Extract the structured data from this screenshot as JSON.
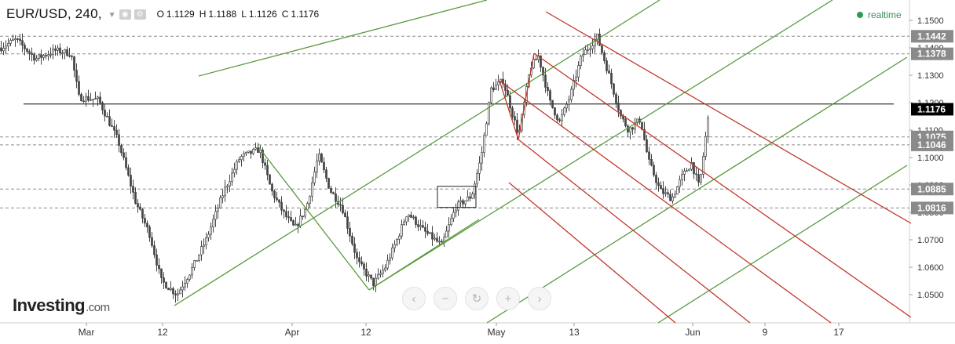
{
  "header": {
    "symbol": "EUR/USD, 240,",
    "open_label": "O",
    "open": "1.1129",
    "high_label": "H",
    "high": "1.1188",
    "low_label": "L",
    "low": "1.1126",
    "close_label": "C",
    "close": "1.1176"
  },
  "realtime_label": "realtime",
  "logo": {
    "main": "Investing",
    "suffix": ".com"
  },
  "nav_icons": [
    "scroll-left-icon",
    "zoom-out-icon",
    "reset-icon",
    "zoom-in-icon",
    "scroll-right-icon"
  ],
  "colors": {
    "candle": "#444444",
    "up_channel": "#5a9a3c",
    "down_channel": "#c0392b",
    "axis_badge": "#8a8a8a",
    "last_price_badge": "#000000",
    "realtime": "#2f9a54"
  },
  "chart_data": {
    "type": "candlestick",
    "symbol": "EUR/USD",
    "timeframe": "240",
    "ylim": [
      1.04,
      1.155
    ],
    "y_ticks": [
      1.05,
      1.06,
      1.07,
      1.08,
      1.09,
      1.1,
      1.11,
      1.12,
      1.13,
      1.14,
      1.15
    ],
    "y_tick_labels": [
      "1.0500",
      "1.0600",
      "1.0700",
      "1.0800",
      "1.0900",
      "1.1000",
      "1.1100",
      "1.1200",
      "1.1300",
      "1.1400",
      "1.1500"
    ],
    "x_ticks": [
      "Mar",
      "12",
      "Apr",
      "12",
      "May",
      "13",
      "Jun",
      "9",
      "17"
    ],
    "price_levels": [
      {
        "label": "1.1442",
        "value": 1.1442,
        "style": "dashed",
        "color": "#8a8a8a"
      },
      {
        "label": "1.1378",
        "value": 1.1378,
        "style": "dashed",
        "color": "#8a8a8a"
      },
      {
        "label": "1.1176",
        "value": 1.1176,
        "style": "last",
        "color": "#000000"
      },
      {
        "label": "1.1075",
        "value": 1.1075,
        "style": "dashed",
        "color": "#8a8a8a"
      },
      {
        "label": "1.1046",
        "value": 1.1046,
        "style": "dashed",
        "color": "#8a8a8a"
      },
      {
        "label": "1.0885",
        "value": 1.0885,
        "style": "dashed",
        "color": "#8a8a8a"
      },
      {
        "label": "1.0816",
        "value": 1.0816,
        "style": "dashed",
        "color": "#8a8a8a"
      }
    ],
    "horizontal_line": {
      "value": 1.1195,
      "color": "#000000"
    },
    "price_path": [
      [
        1.14,
        0
      ],
      [
        1.143,
        20
      ],
      [
        1.136,
        45
      ],
      [
        1.139,
        70
      ],
      [
        1.138,
        90
      ],
      [
        1.122,
        100
      ],
      [
        1.121,
        125
      ],
      [
        1.106,
        150
      ],
      [
        1.084,
        172
      ],
      [
        1.072,
        190
      ],
      [
        1.055,
        205
      ],
      [
        1.05,
        225
      ],
      [
        1.06,
        245
      ],
      [
        1.07,
        262
      ],
      [
        1.088,
        285
      ],
      [
        1.1,
        305
      ],
      [
        1.103,
        330
      ],
      [
        1.088,
        345
      ],
      [
        1.08,
        360
      ],
      [
        1.074,
        375
      ],
      [
        1.082,
        390
      ],
      [
        1.101,
        405
      ],
      [
        1.088,
        420
      ],
      [
        1.082,
        435
      ],
      [
        1.062,
        455
      ],
      [
        1.054,
        475
      ],
      [
        1.06,
        490
      ],
      [
        1.07,
        505
      ],
      [
        1.08,
        518
      ],
      [
        1.073,
        540
      ],
      [
        1.068,
        562
      ],
      [
        1.082,
        580
      ],
      [
        1.086,
        600
      ],
      [
        1.1,
        612
      ],
      [
        1.125,
        625
      ],
      [
        1.128,
        640
      ],
      [
        1.108,
        660
      ],
      [
        1.133,
        675
      ],
      [
        1.137,
        685
      ],
      [
        1.12,
        700
      ],
      [
        1.113,
        712
      ],
      [
        1.122,
        725
      ],
      [
        1.137,
        740
      ],
      [
        1.144,
        760
      ],
      [
        1.13,
        775
      ],
      [
        1.115,
        790
      ],
      [
        1.11,
        800
      ],
      [
        1.114,
        815
      ],
      [
        1.099,
        825
      ],
      [
        1.088,
        840
      ],
      [
        1.085,
        855
      ],
      [
        1.093,
        868
      ],
      [
        1.098,
        880
      ],
      [
        1.089,
        890
      ],
      [
        1.112,
        900
      ],
      [
        1.1176,
        903
      ]
    ],
    "channels": [
      {
        "color": "#5a9a3c",
        "lines": [
          [
            [
              253,
              97
            ],
            [
              620,
              0
            ]
          ],
          [
            [
              222,
              390
            ],
            [
              840,
              0
            ]
          ],
          [
            [
              470,
              370
            ],
            [
              1060,
              0
            ]
          ],
          [
            [
              620,
              412
            ],
            [
              1155,
              73
            ]
          ],
          [
            [
              838,
              412
            ],
            [
              1155,
              211
            ]
          ]
        ]
      },
      {
        "color": "#5a9a3c",
        "lines": [
          [
            [
              328,
              186
            ],
            [
              470,
              370
            ]
          ],
          [
            [
              470,
              370
            ],
            [
              610,
              280
            ]
          ]
        ]
      },
      {
        "color": "#c0392b",
        "lines": [
          [
            [
              695,
              15
            ],
            [
              1160,
              285
            ]
          ],
          [
            [
              680,
              68
            ],
            [
              1160,
              405
            ]
          ],
          [
            [
              636,
              103
            ],
            [
              1058,
              412
            ]
          ],
          [
            [
              660,
              178
            ],
            [
              955,
              412
            ]
          ],
          [
            [
              648,
              233
            ],
            [
              860,
              412
            ]
          ]
        ]
      },
      {
        "color": "#c0392b",
        "lines": [
          [
            [
              660,
              178
            ],
            [
              680,
              68
            ]
          ],
          [
            [
              636,
              103
            ],
            [
              660,
              178
            ]
          ]
        ]
      }
    ],
    "annotation_box": {
      "x1": 557,
      "x2": 606,
      "y_top": 1.0895,
      "y_bottom": 1.0818
    }
  }
}
